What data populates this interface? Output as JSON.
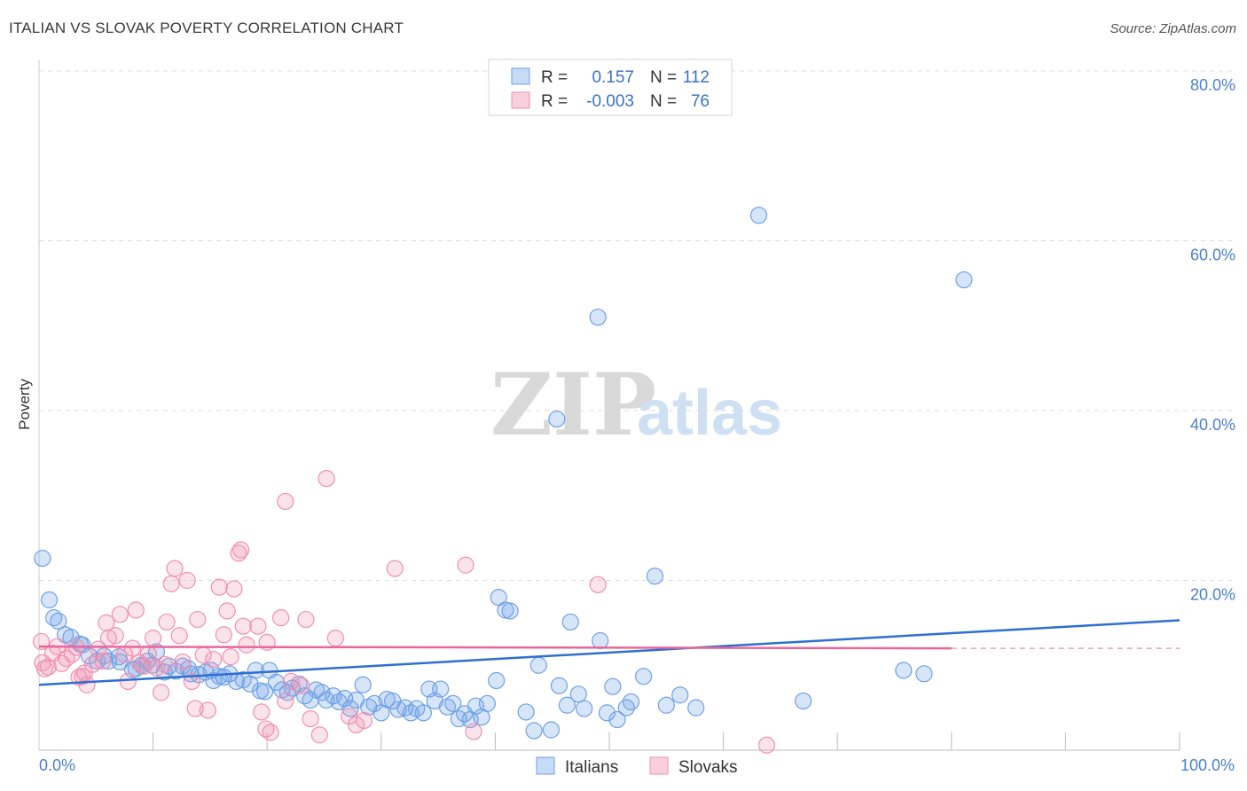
{
  "header": {
    "title": "ITALIAN VS SLOVAK POVERTY CORRELATION CHART",
    "source": "Source: ZipAtlas.com"
  },
  "watermark": {
    "zip": "ZIP",
    "atlas": "atlas"
  },
  "chart_data": {
    "type": "scatter",
    "title": "ITALIAN VS SLOVAK POVERTY CORRELATION CHART",
    "xlabel": "",
    "ylabel": "Poverty",
    "xlim": [
      0,
      100
    ],
    "ylim": [
      0,
      80
    ],
    "x_ticks": [
      0,
      100
    ],
    "x_tick_labels": [
      "0.0%",
      "100.0%"
    ],
    "y_ticks": [
      20,
      40,
      60,
      80
    ],
    "y_tick_labels": [
      "20.0%",
      "40.0%",
      "60.0%",
      "80.0%"
    ],
    "grid": true,
    "legend_top": {
      "rows": [
        {
          "r_label": "R =",
          "r_value": "0.157",
          "n_label": "N =",
          "n_value": "112",
          "color": "#6fa1e6"
        },
        {
          "r_label": "R =",
          "r_value": "-0.003",
          "n_label": "N =",
          "n_value": "76",
          "color": "#f18fb0"
        }
      ]
    },
    "legend_bottom": [
      "Italians",
      "Slovaks"
    ],
    "series": [
      {
        "name": "Italians",
        "color": "#6fa1e6",
        "trend": {
          "x": [
            0,
            100
          ],
          "y": [
            7.7,
            15.3
          ]
        },
        "points": [
          [
            0.3,
            22.6
          ],
          [
            0.9,
            17.7
          ],
          [
            1.3,
            15.6
          ],
          [
            1.7,
            15.2
          ],
          [
            2.3,
            13.6
          ],
          [
            2.8,
            13.3
          ],
          [
            3.6,
            12.5
          ],
          [
            3.8,
            12.4
          ],
          [
            4.4,
            11.1
          ],
          [
            5.1,
            10.5
          ],
          [
            5.7,
            11.1
          ],
          [
            6.1,
            10.5
          ],
          [
            7.0,
            11.0
          ],
          [
            7.1,
            10.4
          ],
          [
            8.2,
            9.5
          ],
          [
            8.5,
            9.6
          ],
          [
            9.0,
            10.0
          ],
          [
            9.5,
            10.5
          ],
          [
            9.9,
            10.0
          ],
          [
            10.3,
            11.6
          ],
          [
            11.0,
            9.2
          ],
          [
            11.4,
            9.9
          ],
          [
            12.0,
            9.3
          ],
          [
            12.6,
            9.9
          ],
          [
            13.1,
            9.6
          ],
          [
            13.3,
            9.0
          ],
          [
            14.0,
            8.9
          ],
          [
            14.6,
            9.2
          ],
          [
            15.1,
            9.4
          ],
          [
            15.3,
            8.2
          ],
          [
            15.8,
            8.7
          ],
          [
            16.2,
            8.6
          ],
          [
            16.7,
            9.0
          ],
          [
            17.3,
            8.1
          ],
          [
            17.9,
            8.3
          ],
          [
            18.5,
            7.8
          ],
          [
            19.0,
            9.4
          ],
          [
            19.4,
            7.0
          ],
          [
            19.8,
            6.9
          ],
          [
            20.2,
            9.4
          ],
          [
            20.8,
            8.0
          ],
          [
            21.3,
            7.1
          ],
          [
            21.8,
            6.8
          ],
          [
            22.2,
            7.3
          ],
          [
            22.8,
            7.8
          ],
          [
            23.3,
            6.4
          ],
          [
            23.8,
            5.9
          ],
          [
            24.3,
            7.1
          ],
          [
            24.8,
            6.8
          ],
          [
            25.2,
            5.9
          ],
          [
            25.8,
            6.4
          ],
          [
            26.3,
            5.7
          ],
          [
            26.8,
            6.1
          ],
          [
            27.3,
            4.9
          ],
          [
            27.8,
            5.9
          ],
          [
            28.4,
            7.7
          ],
          [
            28.9,
            5.1
          ],
          [
            29.4,
            5.5
          ],
          [
            30.0,
            4.4
          ],
          [
            30.5,
            6.0
          ],
          [
            31.0,
            5.8
          ],
          [
            31.5,
            4.8
          ],
          [
            32.1,
            5.0
          ],
          [
            32.6,
            4.4
          ],
          [
            33.1,
            4.9
          ],
          [
            33.7,
            4.4
          ],
          [
            34.2,
            7.2
          ],
          [
            34.7,
            5.8
          ],
          [
            35.2,
            7.2
          ],
          [
            35.8,
            5.1
          ],
          [
            36.3,
            5.5
          ],
          [
            36.8,
            3.7
          ],
          [
            37.3,
            4.3
          ],
          [
            37.8,
            3.6
          ],
          [
            38.3,
            5.2
          ],
          [
            38.8,
            3.9
          ],
          [
            39.3,
            5.5
          ],
          [
            40.1,
            8.2
          ],
          [
            40.3,
            18.0
          ],
          [
            40.9,
            16.5
          ],
          [
            41.3,
            16.4
          ],
          [
            42.7,
            4.5
          ],
          [
            43.4,
            2.3
          ],
          [
            43.8,
            10.0
          ],
          [
            44.9,
            2.4
          ],
          [
            45.4,
            39.0
          ],
          [
            45.6,
            7.6
          ],
          [
            46.3,
            5.3
          ],
          [
            46.6,
            15.1
          ],
          [
            47.3,
            6.6
          ],
          [
            47.8,
            4.9
          ],
          [
            49.0,
            51.0
          ],
          [
            49.2,
            12.9
          ],
          [
            49.8,
            4.4
          ],
          [
            50.3,
            7.5
          ],
          [
            50.7,
            3.6
          ],
          [
            51.5,
            5.0
          ],
          [
            51.9,
            5.7
          ],
          [
            53.0,
            8.7
          ],
          [
            54.0,
            20.5
          ],
          [
            55.0,
            5.3
          ],
          [
            56.2,
            6.5
          ],
          [
            57.6,
            5.0
          ],
          [
            63.1,
            63.0
          ],
          [
            67.0,
            5.8
          ],
          [
            75.8,
            9.4
          ],
          [
            77.6,
            9.0
          ],
          [
            81.1,
            55.4
          ]
        ]
      },
      {
        "name": "Slovaks",
        "color": "#f18fb0",
        "trend": {
          "x": [
            0,
            80
          ],
          "y": [
            12.2,
            12.0
          ]
        },
        "trend_dashed": {
          "x": [
            80,
            100
          ],
          "y": [
            12.0,
            12.0
          ]
        },
        "points": [
          [
            0.2,
            12.8
          ],
          [
            0.5,
            9.6
          ],
          [
            0.8,
            9.8
          ],
          [
            1.2,
            11.4
          ],
          [
            1.6,
            12.2
          ],
          [
            2.0,
            10.2
          ],
          [
            2.4,
            10.8
          ],
          [
            2.9,
            11.3
          ],
          [
            3.3,
            12.1
          ],
          [
            3.5,
            8.6
          ],
          [
            3.8,
            8.7
          ],
          [
            4.2,
            7.7
          ],
          [
            4.7,
            10.1
          ],
          [
            5.2,
            11.9
          ],
          [
            5.6,
            10.5
          ],
          [
            5.9,
            15.0
          ],
          [
            6.1,
            13.2
          ],
          [
            6.7,
            13.5
          ],
          [
            7.1,
            16.0
          ],
          [
            7.5,
            11.3
          ],
          [
            7.8,
            8.1
          ],
          [
            8.2,
            12.0
          ],
          [
            8.5,
            16.5
          ],
          [
            8.8,
            10.3
          ],
          [
            9.2,
            9.9
          ],
          [
            9.6,
            11.3
          ],
          [
            10.0,
            13.2
          ],
          [
            10.3,
            9.7
          ],
          [
            10.7,
            6.8
          ],
          [
            11.0,
            10.1
          ],
          [
            11.2,
            15.1
          ],
          [
            11.6,
            19.6
          ],
          [
            11.9,
            21.4
          ],
          [
            12.3,
            13.5
          ],
          [
            12.6,
            10.4
          ],
          [
            13.0,
            20.0
          ],
          [
            13.4,
            8.1
          ],
          [
            13.7,
            4.9
          ],
          [
            13.9,
            15.4
          ],
          [
            14.4,
            11.2
          ],
          [
            14.8,
            4.7
          ],
          [
            15.3,
            10.7
          ],
          [
            15.8,
            19.2
          ],
          [
            16.2,
            13.6
          ],
          [
            16.5,
            16.4
          ],
          [
            16.8,
            11.0
          ],
          [
            17.1,
            19.0
          ],
          [
            17.5,
            23.2
          ],
          [
            17.7,
            23.6
          ],
          [
            17.9,
            14.6
          ],
          [
            18.2,
            12.4
          ],
          [
            19.2,
            14.6
          ],
          [
            19.5,
            4.5
          ],
          [
            19.9,
            2.5
          ],
          [
            20.0,
            12.7
          ],
          [
            20.3,
            2.1
          ],
          [
            21.2,
            15.6
          ],
          [
            21.6,
            29.3
          ],
          [
            21.6,
            5.8
          ],
          [
            22.1,
            8.1
          ],
          [
            23.0,
            7.6
          ],
          [
            23.4,
            15.4
          ],
          [
            23.8,
            3.7
          ],
          [
            24.6,
            1.8
          ],
          [
            25.2,
            32.0
          ],
          [
            26.0,
            13.2
          ],
          [
            27.2,
            4.0
          ],
          [
            27.8,
            3.0
          ],
          [
            28.5,
            3.5
          ],
          [
            31.2,
            21.4
          ],
          [
            37.4,
            21.8
          ],
          [
            38.1,
            2.2
          ],
          [
            49.0,
            19.5
          ],
          [
            63.8,
            0.6
          ],
          [
            0.3,
            10.3
          ],
          [
            4.0,
            9.1
          ]
        ]
      }
    ]
  }
}
